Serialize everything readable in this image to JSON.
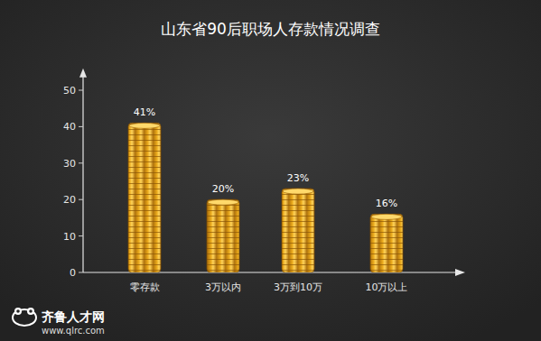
{
  "chart_data": {
    "type": "bar",
    "title": "山东省90后职场人存款情况调查",
    "categories": [
      "零存款",
      "3万以内",
      "3万到10万",
      "10万以上"
    ],
    "values": [
      41,
      20,
      23,
      16
    ],
    "value_labels": [
      "41%",
      "20%",
      "23%",
      "16%"
    ],
    "data_labels": true,
    "color": "#e8a81c",
    "ylim": [
      0,
      55
    ],
    "yticks": [
      0,
      10,
      20,
      30,
      40,
      50
    ],
    "grid": false,
    "watermark": [
      "齐鲁人才网",
      "www.qlrc.com"
    ]
  }
}
